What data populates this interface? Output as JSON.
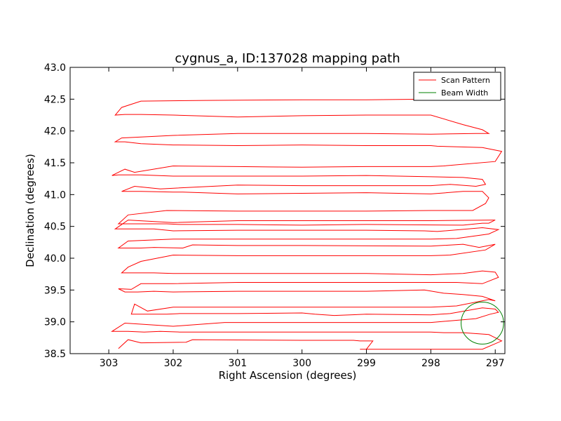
{
  "chart_data": {
    "type": "line",
    "title": "cygnus_a, ID:137028 mapping path",
    "xlabel": "Right Ascension (degrees)",
    "ylabel": "Declination (degrees)",
    "xlim": [
      303.6,
      296.85
    ],
    "ylim": [
      38.5,
      43.0
    ],
    "x_ticks": [
      303,
      302,
      301,
      300,
      299,
      298,
      297
    ],
    "x_tick_labels": [
      "303",
      "302",
      "301",
      "300",
      "299",
      "298",
      "297"
    ],
    "y_ticks": [
      38.5,
      39.0,
      39.5,
      40.0,
      40.5,
      41.0,
      41.5,
      42.0,
      42.5,
      43.0
    ],
    "y_tick_labels": [
      "38.5",
      "39.0",
      "39.5",
      "40.0",
      "40.5",
      "41.0",
      "41.5",
      "42.0",
      "42.5",
      "43.0"
    ],
    "grid": false,
    "legend_position": "top-right",
    "colors": {
      "scan": "#ff0000",
      "beam": "#008000",
      "axes": "#000000"
    },
    "series": [
      {
        "name": "Scan Pattern",
        "color": "#ff0000",
        "x": [
          302.85,
          302.7,
          302.5,
          301.8,
          301.7,
          300.0,
          299.2,
          299.1,
          298.9,
          299.0,
          299.1,
          298.0,
          297.7,
          297.45,
          297.2,
          296.9,
          297.0,
          297.1,
          297.5,
          297.8,
          298.0,
          301.0,
          301.9,
          302.2,
          302.45,
          302.7,
          302.95,
          302.75,
          302.0,
          301.2,
          300.0,
          299.0,
          298.0,
          297.3,
          297.08,
          296.95,
          297.0,
          297.2,
          297.7,
          297.85,
          298.0,
          299.0,
          299.5,
          299.8,
          300.0,
          301.0,
          301.9,
          302.1,
          302.3,
          302.5,
          302.65,
          302.6,
          302.4,
          302.0,
          301.0,
          300.0,
          299.0,
          298.0,
          297.6,
          297.1,
          297.0,
          297.2,
          297.5,
          297.8,
          298.1,
          299.0,
          300.0,
          301.0,
          302.0,
          302.3,
          302.55,
          302.75,
          302.85,
          302.65,
          302.5,
          302.0,
          301.0,
          300.0,
          299.0,
          298.0,
          297.6,
          297.2,
          296.95,
          297.0,
          297.2,
          297.5,
          297.8,
          298.0,
          299.0,
          300.0,
          301.0,
          302.0,
          302.3,
          302.65,
          302.8,
          302.7,
          302.5,
          302.0,
          301.0,
          300.0,
          299.0,
          298.0,
          297.7,
          297.15,
          297.0,
          297.25,
          297.5,
          298.0,
          300.0,
          301.0,
          301.7,
          301.85,
          302.3,
          302.5,
          302.75,
          302.85,
          302.7,
          302.0,
          301.0,
          300.0,
          299.0,
          298.0,
          297.6,
          297.1,
          296.95,
          297.2,
          297.9,
          298.1,
          299.0,
          300.0,
          301.0,
          302.0,
          302.3,
          302.75,
          302.9,
          302.7,
          302.0,
          301.0,
          300.0,
          299.0,
          298.0,
          297.0,
          297.1,
          297.2,
          297.5,
          299.0,
          300.0,
          301.0,
          301.9,
          302.1,
          302.5,
          302.75,
          302.85,
          302.7,
          302.1,
          301.0,
          300.0,
          299.0,
          298.0,
          297.35,
          297.15,
          297.1,
          297.2,
          297.5,
          298.0,
          299.0,
          300.0,
          301.0,
          301.85,
          302.0,
          302.5,
          302.7,
          302.8,
          302.6,
          302.2,
          301.0,
          300.0,
          299.0,
          298.0,
          297.7,
          297.3,
          297.15,
          297.2,
          297.5,
          298.0,
          299.0,
          300.0,
          301.0,
          302.0,
          302.5,
          302.7,
          302.85,
          302.95,
          302.75,
          302.6,
          302.0,
          301.0,
          300.0,
          299.0,
          298.0,
          297.8,
          297.0,
          296.9,
          297.2,
          297.9,
          298.0,
          299.0,
          300.0,
          301.0,
          302.0,
          302.5,
          302.75,
          302.9,
          302.8,
          302.0,
          301.0,
          300.0,
          299.0,
          298.0,
          297.3,
          297.1,
          297.2,
          297.5,
          298.0,
          299.0,
          300.0,
          301.0,
          302.0,
          302.5,
          302.75,
          302.9,
          302.8,
          302.5,
          301.5,
          300.0,
          299.0,
          298.0,
          297.3,
          297.15
        ],
        "y": [
          38.58,
          38.72,
          38.67,
          38.68,
          38.72,
          38.71,
          38.71,
          38.7,
          38.7,
          38.57,
          38.57,
          38.57,
          38.57,
          38.57,
          38.57,
          38.7,
          38.75,
          38.8,
          38.83,
          38.83,
          38.84,
          38.84,
          38.84,
          38.85,
          38.84,
          38.85,
          38.85,
          38.98,
          38.93,
          38.99,
          38.99,
          38.99,
          38.99,
          39.05,
          39.12,
          39.15,
          39.2,
          39.22,
          39.13,
          39.12,
          39.11,
          39.12,
          39.1,
          39.12,
          39.14,
          39.13,
          39.13,
          39.12,
          39.12,
          39.12,
          39.12,
          39.28,
          39.17,
          39.23,
          39.23,
          39.23,
          39.23,
          39.23,
          39.25,
          39.35,
          39.33,
          39.4,
          39.43,
          39.45,
          39.5,
          39.48,
          39.48,
          39.48,
          39.47,
          39.48,
          39.47,
          39.47,
          39.52,
          39.51,
          39.6,
          39.6,
          39.62,
          39.62,
          39.62,
          39.62,
          39.62,
          39.6,
          39.7,
          39.78,
          39.8,
          39.76,
          39.75,
          39.74,
          39.76,
          39.76,
          39.76,
          39.76,
          39.77,
          39.77,
          39.77,
          39.86,
          39.95,
          40.05,
          40.04,
          40.04,
          40.04,
          40.04,
          40.05,
          40.13,
          40.22,
          40.17,
          40.22,
          40.19,
          40.2,
          40.2,
          40.21,
          40.16,
          40.17,
          40.16,
          40.16,
          40.16,
          40.27,
          40.3,
          40.3,
          40.3,
          40.3,
          40.3,
          40.31,
          40.38,
          40.45,
          40.48,
          40.42,
          40.43,
          40.44,
          40.44,
          40.44,
          40.43,
          40.46,
          40.46,
          40.46,
          40.6,
          40.56,
          40.59,
          40.59,
          40.59,
          40.59,
          40.6,
          40.55,
          40.55,
          40.52,
          40.53,
          40.52,
          40.53,
          40.53,
          40.54,
          40.54,
          40.54,
          40.54,
          40.68,
          40.75,
          40.74,
          40.74,
          40.74,
          40.75,
          40.75,
          40.86,
          40.95,
          41.05,
          41.05,
          41.01,
          41.03,
          41.02,
          41.01,
          41.04,
          41.04,
          41.05,
          41.05,
          41.05,
          41.13,
          41.09,
          41.15,
          41.14,
          41.14,
          41.14,
          41.16,
          41.13,
          41.16,
          41.24,
          41.27,
          41.28,
          41.3,
          41.29,
          41.29,
          41.29,
          41.31,
          41.31,
          41.31,
          41.3,
          41.4,
          41.35,
          41.45,
          41.44,
          41.43,
          41.44,
          41.44,
          41.45,
          41.52,
          41.68,
          41.74,
          41.76,
          41.77,
          41.77,
          41.78,
          41.77,
          41.78,
          41.8,
          41.83,
          41.83,
          41.89,
          41.93,
          41.96,
          41.96,
          41.96,
          41.95,
          41.96,
          41.96,
          42.02,
          42.1,
          42.25,
          42.25,
          42.24,
          42.22,
          42.25,
          42.26,
          42.26,
          42.25,
          42.37,
          42.47,
          42.48,
          42.49,
          42.49,
          42.5,
          42.5,
          42.5
        ]
      },
      {
        "name": "Beam Width",
        "color": "#008000",
        "center": [
          297.2,
          38.98
        ],
        "radius": 0.33
      }
    ]
  }
}
